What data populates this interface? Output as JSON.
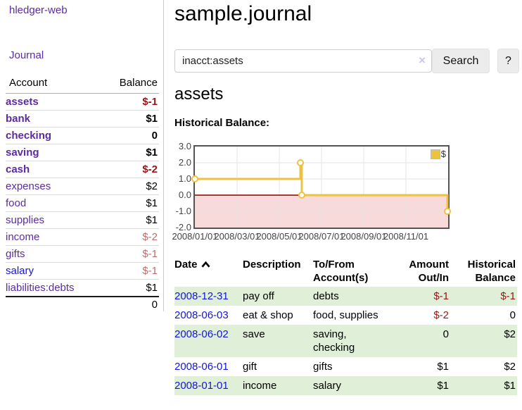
{
  "brand": "hledger-web",
  "nav": {
    "journal": "Journal"
  },
  "sidebar": {
    "header": {
      "account": "Account",
      "balance": "Balance"
    },
    "accounts": [
      {
        "name": "assets",
        "balance": "$-1"
      },
      {
        "name": "bank",
        "balance": "$1"
      },
      {
        "name": "checking",
        "balance": "0"
      },
      {
        "name": "saving",
        "balance": "$1"
      },
      {
        "name": "cash",
        "balance": "$-2"
      },
      {
        "name": "expenses",
        "balance": "$2"
      },
      {
        "name": "food",
        "balance": "$1"
      },
      {
        "name": "supplies",
        "balance": "$1"
      },
      {
        "name": "income",
        "balance": "$-2"
      },
      {
        "name": "gifts",
        "balance": "$-1"
      },
      {
        "name": "salary",
        "balance": "$-1"
      },
      {
        "name": "liabilities:debts",
        "balance": "$1"
      }
    ],
    "total": "0"
  },
  "main": {
    "title": "sample.journal",
    "search": {
      "query": "inacct:assets",
      "clear": "×",
      "search_button": "Search",
      "help_button": "?"
    },
    "account_heading": "assets",
    "section_label": "Historical Balance:"
  },
  "chart_data": {
    "type": "line",
    "step": true,
    "title": "Historical Balance",
    "ylim": [
      -2,
      3
    ],
    "yticks": [
      "3.0",
      "2.0",
      "1.0",
      "0.0",
      "-1.0",
      "-2.0"
    ],
    "xticks": [
      "2008/01/01",
      "2008/03/01",
      "2008/05/01",
      "2008/07/01",
      "2008/09/01",
      "2008/11/01"
    ],
    "series": [
      {
        "name": "$",
        "color": "#edc240",
        "points": [
          [
            "2008/01/01",
            1
          ],
          [
            "2008/06/01",
            2
          ],
          [
            "2008/06/03",
            0
          ],
          [
            "2008/12/31",
            -1
          ]
        ]
      }
    ],
    "legend_position": "top-right",
    "grid": true,
    "negative_fill": "#f9dada",
    "zero_line_color": "#8b0000",
    "border_color": "#545454"
  },
  "transactions": {
    "headers": {
      "date": "Date",
      "description": "Description",
      "tofrom": "To/From Account(s)",
      "amount": "Amount Out/In",
      "balance": "Historical Balance"
    },
    "sort_icon": "chevron-up",
    "rows": [
      {
        "date": "2008-12-31",
        "description": "pay off",
        "accounts": "debts",
        "amount": "$-1",
        "balance": "$-1"
      },
      {
        "date": "2008-06-03",
        "description": "eat & shop",
        "accounts": "food, supplies",
        "amount": "$-2",
        "balance": "0"
      },
      {
        "date": "2008-06-02",
        "description": "save",
        "accounts": "saving, checking",
        "amount": "0",
        "balance": "$2"
      },
      {
        "date": "2008-06-01",
        "description": "gift",
        "accounts": "gifts",
        "amount": "$1",
        "balance": "$2"
      },
      {
        "date": "2008-01-01",
        "description": "income",
        "accounts": "salary",
        "amount": "$1",
        "balance": "$1"
      }
    ]
  },
  "colors": {
    "link_purple": "#5a2ca0",
    "link_blue": "#1414e0",
    "negative_strong": "#951717",
    "negative_weak": "#bb6e6e",
    "row_green": "#e0efd8",
    "chart_line_gold": "#edc240",
    "chart_negative_fill": "#f9dada",
    "chart_zero_line": "#8b0000",
    "chart_border": "#545454",
    "button_bg": "#ececec"
  }
}
